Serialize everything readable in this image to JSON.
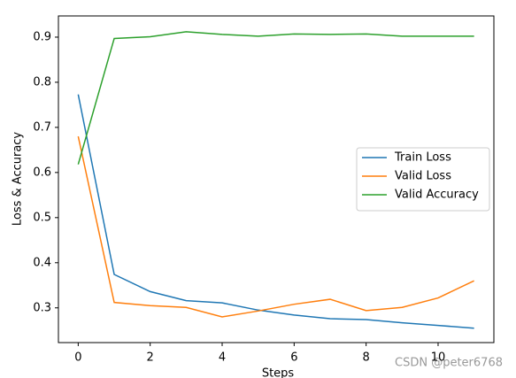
{
  "chart_data": {
    "type": "line",
    "x": [
      0,
      1,
      2,
      3,
      4,
      5,
      6,
      7,
      8,
      9,
      10,
      11
    ],
    "series": [
      {
        "name": "Train Loss",
        "color": "#1f77b4",
        "values": [
          0.773,
          0.374,
          0.336,
          0.316,
          0.311,
          0.295,
          0.284,
          0.276,
          0.274,
          0.267,
          0.261,
          0.255
        ]
      },
      {
        "name": "Valid Loss",
        "color": "#ff7f0e",
        "values": [
          0.68,
          0.312,
          0.305,
          0.301,
          0.28,
          0.293,
          0.308,
          0.319,
          0.294,
          0.301,
          0.322,
          0.36
        ]
      },
      {
        "name": "Valid Accuracy",
        "color": "#2ca02c",
        "values": [
          0.618,
          0.897,
          0.901,
          0.912,
          0.906,
          0.902,
          0.907,
          0.906,
          0.907,
          0.902,
          0.902,
          0.902
        ]
      }
    ],
    "xlabel": "Steps",
    "ylabel": "Loss & Accuracy",
    "xlim": [
      -0.55,
      11.55
    ],
    "ylim": [
      0.223,
      0.947
    ],
    "xticks": [
      0,
      2,
      4,
      6,
      8,
      10
    ],
    "yticks": [
      0.3,
      0.4,
      0.5,
      0.6,
      0.7,
      0.8,
      0.9
    ],
    "legend": "center right",
    "watermark": "CSDN @peter6768"
  }
}
